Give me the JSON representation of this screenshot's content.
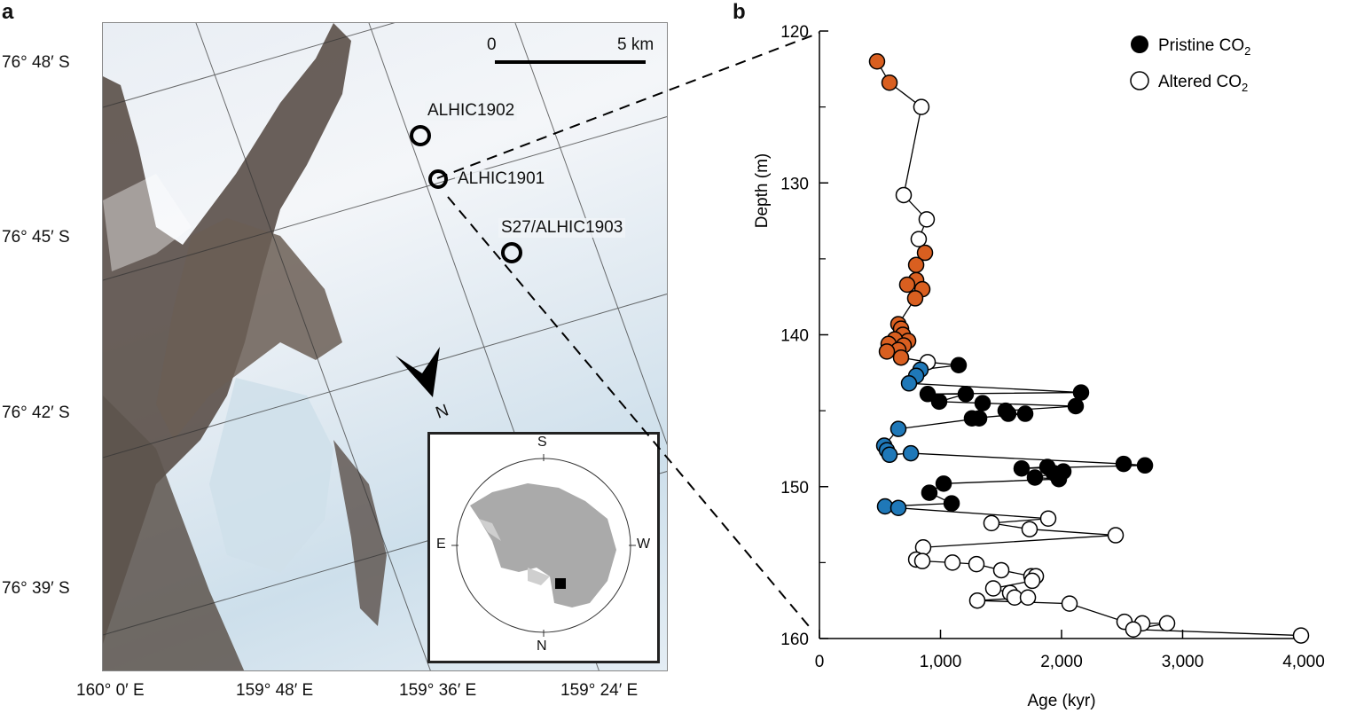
{
  "panel_a": {
    "letter": "a",
    "lat_labels": [
      "76° 48′ S",
      "76° 45′ S",
      "76° 42′ S",
      "76° 39′ S"
    ],
    "lon_labels": [
      "160° 0′ E",
      "159° 48′ E",
      "159° 36′ E",
      "159° 24′ E"
    ],
    "scale_bar": {
      "start": "0",
      "end": "5 km"
    },
    "sites": [
      "ALHIC1902",
      "ALHIC1901",
      "S27/ALHIC1903"
    ],
    "north_label": "N",
    "inset": {
      "top": "S",
      "bottom": "N",
      "left": "E",
      "right": "W"
    }
  },
  "panel_b": {
    "letter": "b"
  },
  "chart_data": {
    "type": "line",
    "xlabel": "Age (kyr)",
    "ylabel": "Depth (m)",
    "xlim": [
      0,
      4000
    ],
    "ylim": [
      120,
      160
    ],
    "y_inverted": true,
    "x_ticks": [
      "0",
      "1,000",
      "2,000",
      "3,000",
      "4,000"
    ],
    "x_tick_values": [
      0,
      1000,
      2000,
      3000,
      4000
    ],
    "y_ticks": [
      "120",
      "130",
      "140",
      "150",
      "160"
    ],
    "y_tick_values": [
      120,
      130,
      140,
      150,
      160
    ],
    "grid": false,
    "legend_placement": "top-right",
    "legend": [
      {
        "label_main": "Pristine CO",
        "label_sub": "2",
        "marker": "filled"
      },
      {
        "label_main": "Altered CO",
        "label_sub": "2",
        "marker": "open"
      }
    ],
    "colors": {
      "pristine": "#000000",
      "altered": "#ffffff",
      "orange": "#d95f20",
      "blue": "#1f78b8"
    },
    "points": [
      [
        476,
        122.0,
        "orange"
      ],
      [
        579,
        123.4,
        "orange"
      ],
      [
        842,
        125.0,
        "altered"
      ],
      [
        696,
        130.8,
        "altered"
      ],
      [
        886,
        132.4,
        "altered"
      ],
      [
        820,
        133.7,
        "altered"
      ],
      [
        872,
        134.6,
        "orange"
      ],
      [
        799,
        135.4,
        "orange"
      ],
      [
        799,
        136.4,
        "orange"
      ],
      [
        725,
        136.7,
        "orange"
      ],
      [
        850,
        137.0,
        "orange"
      ],
      [
        791,
        137.6,
        "orange"
      ],
      [
        652,
        139.3,
        "orange"
      ],
      [
        674,
        139.6,
        "orange"
      ],
      [
        689,
        140.0,
        "orange"
      ],
      [
        733,
        140.4,
        "orange"
      ],
      [
        623,
        140.3,
        "orange"
      ],
      [
        696,
        140.7,
        "orange"
      ],
      [
        571,
        140.6,
        "orange"
      ],
      [
        652,
        141.0,
        "orange"
      ],
      [
        557,
        141.1,
        "orange"
      ],
      [
        674,
        141.5,
        "orange"
      ],
      [
        894,
        141.8,
        "altered"
      ],
      [
        1150,
        142.0,
        "pristine"
      ],
      [
        835,
        142.3,
        "blue"
      ],
      [
        799,
        142.7,
        "blue"
      ],
      [
        740,
        143.2,
        "blue"
      ],
      [
        2161,
        143.8,
        "pristine"
      ],
      [
        894,
        143.9,
        "pristine"
      ],
      [
        1209,
        143.9,
        "pristine"
      ],
      [
        989,
        144.4,
        "pristine"
      ],
      [
        1348,
        144.5,
        "pristine"
      ],
      [
        2117,
        144.7,
        "pristine"
      ],
      [
        1538,
        145.0,
        "pristine"
      ],
      [
        1560,
        145.2,
        "pristine"
      ],
      [
        1700,
        145.2,
        "pristine"
      ],
      [
        1260,
        145.5,
        "pristine"
      ],
      [
        1319,
        145.5,
        "pristine"
      ],
      [
        652,
        146.2,
        "blue"
      ],
      [
        535,
        147.3,
        "blue"
      ],
      [
        557,
        147.6,
        "blue"
      ],
      [
        579,
        147.9,
        "blue"
      ],
      [
        755,
        147.8,
        "blue"
      ],
      [
        2513,
        148.5,
        "pristine"
      ],
      [
        2689,
        148.6,
        "pristine"
      ],
      [
        1670,
        148.8,
        "pristine"
      ],
      [
        1883,
        148.7,
        "pristine"
      ],
      [
        1934,
        149.1,
        "pristine"
      ],
      [
        2015,
        149.0,
        "pristine"
      ],
      [
        1780,
        149.4,
        "pristine"
      ],
      [
        1978,
        149.5,
        "pristine"
      ],
      [
        1026,
        149.8,
        "pristine"
      ],
      [
        908,
        150.4,
        "pristine"
      ],
      [
        1092,
        151.1,
        "pristine"
      ],
      [
        542,
        151.3,
        "blue"
      ],
      [
        652,
        151.4,
        "blue"
      ],
      [
        1890,
        152.1,
        "altered"
      ],
      [
        1421,
        152.4,
        "altered"
      ],
      [
        1736,
        152.8,
        "altered"
      ],
      [
        2447,
        153.2,
        "altered"
      ],
      [
        857,
        154.0,
        "altered"
      ],
      [
        799,
        154.8,
        "altered"
      ],
      [
        850,
        154.9,
        "altered"
      ],
      [
        1099,
        155.0,
        "altered"
      ],
      [
        1297,
        155.1,
        "altered"
      ],
      [
        1502,
        155.5,
        "altered"
      ],
      [
        1751,
        155.9,
        "altered"
      ],
      [
        1788,
        155.9,
        "altered"
      ],
      [
        1758,
        156.2,
        "altered"
      ],
      [
        1436,
        156.7,
        "altered"
      ],
      [
        1575,
        157.0,
        "altered"
      ],
      [
        1612,
        157.3,
        "altered"
      ],
      [
        1722,
        157.3,
        "altered"
      ],
      [
        1304,
        157.5,
        "altered"
      ],
      [
        2066,
        157.7,
        "altered"
      ],
      [
        2520,
        158.9,
        "altered"
      ],
      [
        2667,
        159.0,
        "altered"
      ],
      [
        2872,
        159.0,
        "altered"
      ],
      [
        2593,
        159.4,
        "altered"
      ],
      [
        3978,
        159.8,
        "altered"
      ]
    ]
  }
}
